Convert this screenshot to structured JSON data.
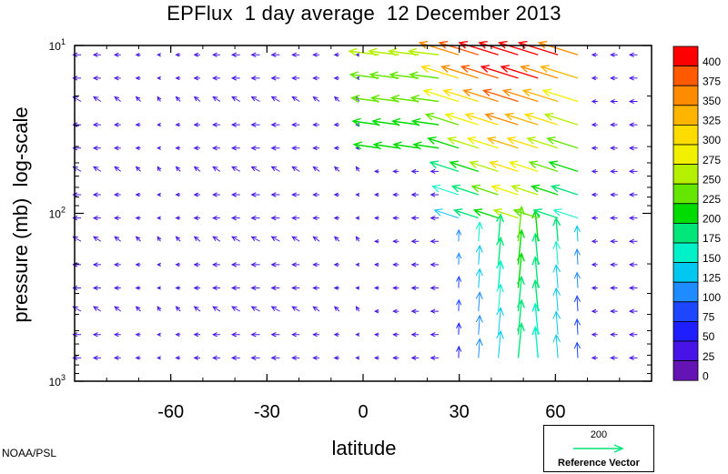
{
  "chart_data": {
    "type": "vector-field",
    "title": "EPFlux  1 day average  12 December 2013",
    "xlabel": "latitude",
    "ylabel": "pressure (mb)  log-scale",
    "xlim": [
      -90,
      90
    ],
    "ylim_pressure": [
      1000,
      10
    ],
    "y_scale": "log",
    "x_ticks": [
      "-60",
      "-30",
      "0",
      "30",
      "60"
    ],
    "x_tick_values": [
      -60,
      -30,
      0,
      30,
      60
    ],
    "y_tick_labels": [
      {
        "base": "10",
        "exp": "1",
        "value": 10
      },
      {
        "base": "10",
        "exp": "2",
        "value": 100
      },
      {
        "base": "10",
        "exp": "3",
        "value": 1000
      }
    ],
    "colorbar_labels": [
      "400",
      "375",
      "350",
      "325",
      "300",
      "275",
      "250",
      "225",
      "200",
      "175",
      "150",
      "125",
      "100",
      "75",
      "50",
      "25",
      "0"
    ],
    "colorbar_colors": [
      "#ff0000",
      "#ff5a00",
      "#ff8c00",
      "#ffb400",
      "#ffdc00",
      "#f0f000",
      "#b4f000",
      "#64e600",
      "#00dc00",
      "#00e678",
      "#00f0c8",
      "#00c8f0",
      "#1e8cff",
      "#1e46ff",
      "#1e1eff",
      "#4614e6",
      "#6414b4"
    ],
    "reference_vector": {
      "value": "200",
      "label": "Reference Vector"
    },
    "field_summary": "Weak westward (blue) arrows across most latitudes; strong vectors 30N–70N, upward-pointing near 1000 mb turning poleward-upward aloft, reaching >400 (red) near 10–20 mb.",
    "credit": "NOAA/PSL",
    "legend_placement": "right"
  }
}
